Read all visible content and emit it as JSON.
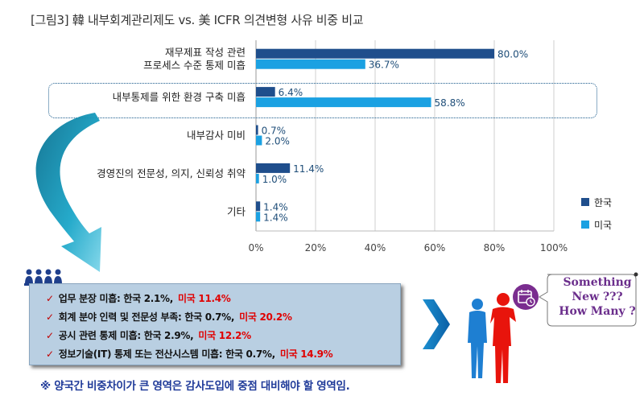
{
  "title": "[그림3] 韓 내부회계관리제도 vs. 美 ICFR 의견변형 사유 비중 비교",
  "colors": {
    "korea": "#1f4e8c",
    "us": "#1ba1e2",
    "accent_red": "#e00000",
    "footnote": "#1f3a99",
    "callout": "#6b2e8c"
  },
  "chart_data": {
    "type": "bar",
    "orientation": "horizontal",
    "categories": [
      [
        "재무제표 작성 관련",
        "프로세스 수준 통제 미흡"
      ],
      [
        "내부통제를 위한 환경 구축 미흡"
      ],
      [
        "내부감사 미비"
      ],
      [
        "경영진의 전문성, 의지, 신뢰성 취약"
      ],
      [
        "기타"
      ]
    ],
    "series": [
      {
        "name": "한국",
        "values": [
          80.0,
          6.4,
          0.7,
          11.4,
          1.4
        ],
        "labels": [
          "80.0%",
          "6.4%",
          "0.7%",
          "11.4%",
          "1.4%"
        ],
        "color": "#1f4e8c"
      },
      {
        "name": "미국",
        "values": [
          36.7,
          58.8,
          2.0,
          1.0,
          1.4
        ],
        "labels": [
          "36.7%",
          "58.8%",
          "2.0%",
          "1.0%",
          "1.4%"
        ],
        "color": "#1ba1e2"
      }
    ],
    "xlim": [
      0,
      100
    ],
    "xticks": [
      "0%",
      "20%",
      "40%",
      "60%",
      "80%",
      "100%"
    ],
    "grid": true,
    "legend": "right",
    "highlighted_category": 1
  },
  "findings": [
    {
      "text": "업무 분장 미흡: 한국 2.1%,",
      "us": "미국 11.4%"
    },
    {
      "text": "회계 분야 인력 및 전문성 부족: 한국 0.7%,",
      "us": "미국 20.2%"
    },
    {
      "text": "공시 관련 통제 미흡: 한국 2.9%,",
      "us": "미국 12.2%"
    },
    {
      "text": "정보기술(IT) 통제 또는 전산시스템 미흡: 한국 0.7%,",
      "us": "미국 14.9%"
    }
  ],
  "check_mark": "✓",
  "footnote": "※ 양국간 비중차이가 큰 영역은 감사도입에 중점 대비해야 할 영역임.",
  "callout": {
    "line1": "Something",
    "line2": "New ???",
    "line3": "How Many ?"
  },
  "icons": [
    "people-group-icon",
    "curved-arrow-icon",
    "chevron-right-icon",
    "clock-calendar-icon",
    "business-people-icon"
  ]
}
